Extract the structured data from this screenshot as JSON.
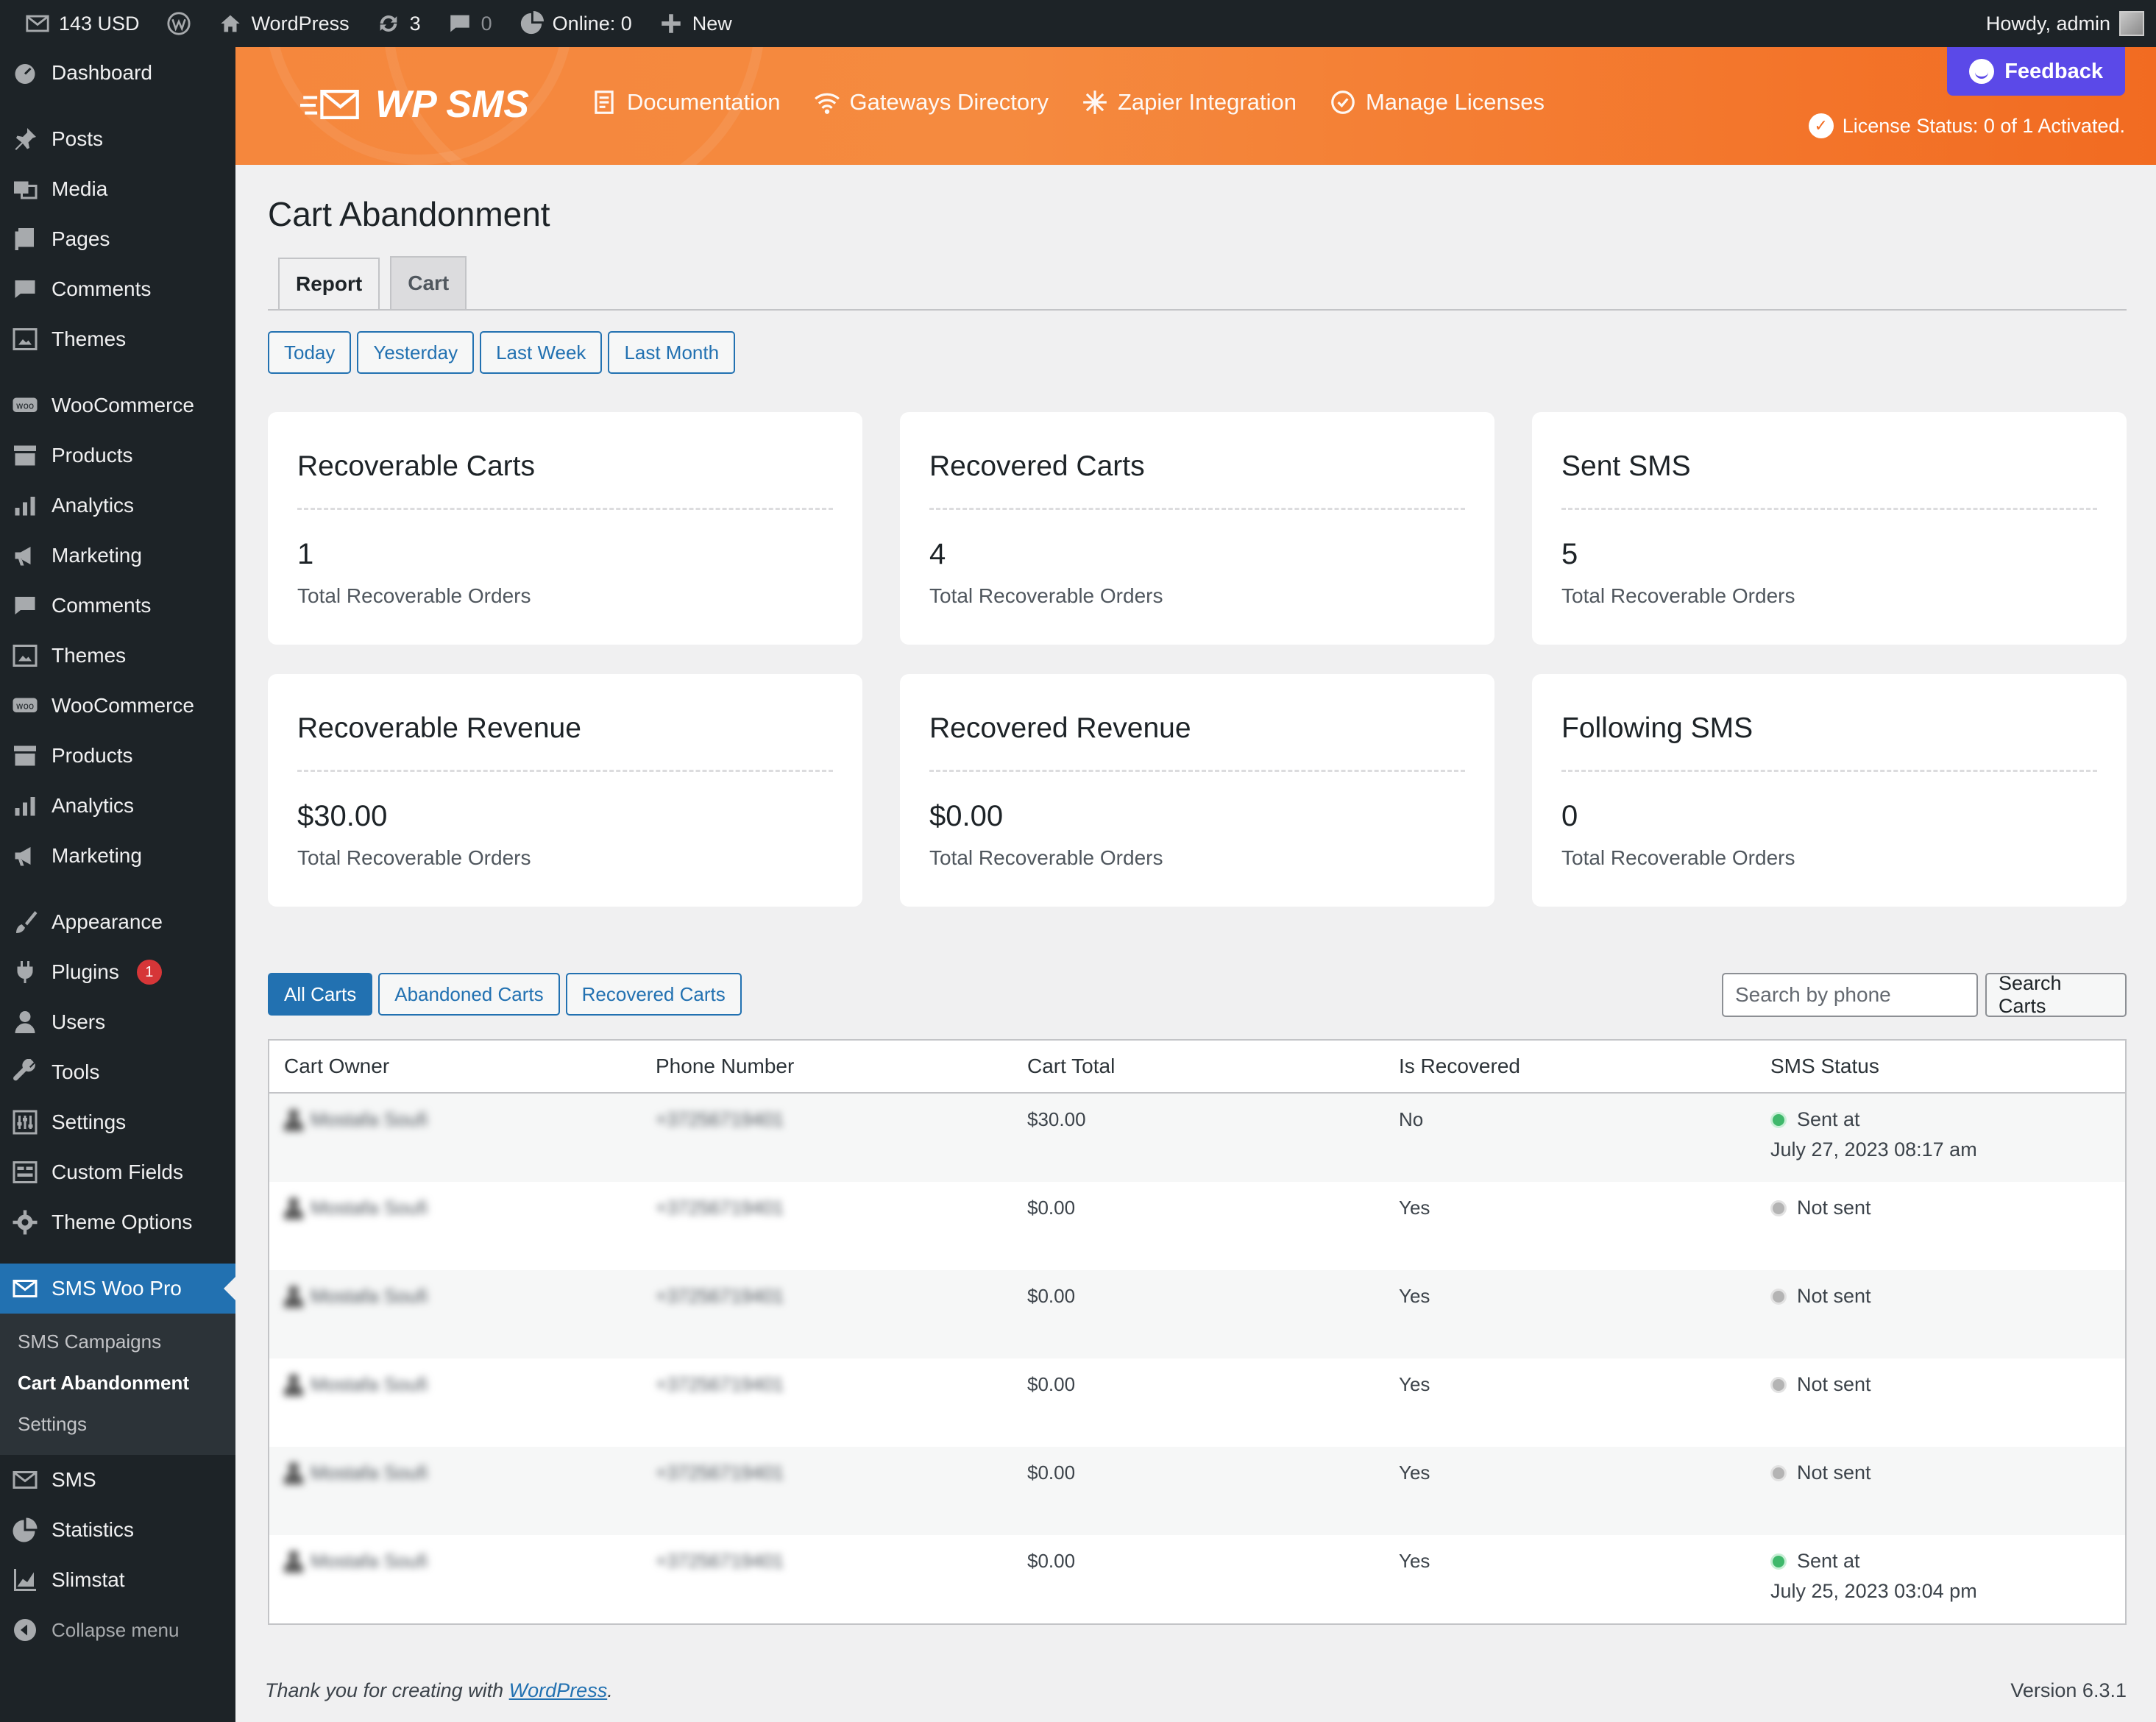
{
  "adminbar": {
    "sms_balance": "143 USD",
    "site_name": "WordPress",
    "updates_count": "3",
    "comments_count": "0",
    "online": "Online: 0",
    "new_label": "New",
    "howdy": "Howdy, admin"
  },
  "sidebar": {
    "items": [
      {
        "label": "Dashboard",
        "icon": "dashboard-icon"
      },
      {
        "label": "Posts",
        "icon": "pin-icon"
      },
      {
        "label": "Media",
        "icon": "media-icon"
      },
      {
        "label": "Pages",
        "icon": "pages-icon"
      },
      {
        "label": "Comments",
        "icon": "comment-icon"
      },
      {
        "label": "Themes",
        "icon": "themes-icon"
      },
      {
        "label": "WooCommerce",
        "icon": "woo-icon"
      },
      {
        "label": "Products",
        "icon": "archive-icon"
      },
      {
        "label": "Analytics",
        "icon": "chart-bar-icon"
      },
      {
        "label": "Marketing",
        "icon": "megaphone-icon"
      },
      {
        "label": "Comments",
        "icon": "comment-icon"
      },
      {
        "label": "Themes",
        "icon": "themes-icon"
      },
      {
        "label": "WooCommerce",
        "icon": "woo-icon"
      },
      {
        "label": "Products",
        "icon": "archive-icon"
      },
      {
        "label": "Analytics",
        "icon": "chart-bar-icon"
      },
      {
        "label": "Marketing",
        "icon": "megaphone-icon"
      },
      {
        "label": "Appearance",
        "icon": "brush-icon"
      },
      {
        "label": "Plugins",
        "icon": "plugin-icon",
        "badge": "1"
      },
      {
        "label": "Users",
        "icon": "user-icon"
      },
      {
        "label": "Tools",
        "icon": "wrench-icon"
      },
      {
        "label": "Settings",
        "icon": "settings-icon"
      },
      {
        "label": "Custom Fields",
        "icon": "fields-icon"
      },
      {
        "label": "Theme Options",
        "icon": "gear-icon"
      },
      {
        "label": "SMS Woo Pro",
        "icon": "envelope-icon"
      }
    ],
    "submenu": [
      "SMS Campaigns",
      "Cart Abandonment",
      "Settings"
    ],
    "bottom_items": [
      {
        "label": "SMS",
        "icon": "envelope-icon"
      },
      {
        "label": "Statistics",
        "icon": "pie-icon"
      },
      {
        "label": "Slimstat",
        "icon": "graph-icon"
      }
    ],
    "collapse_label": "Collapse menu"
  },
  "plugin_header": {
    "logo_text": "WP SMS",
    "nav": [
      {
        "label": "Documentation",
        "icon": "document-icon"
      },
      {
        "label": "Gateways Directory",
        "icon": "wifi-icon"
      },
      {
        "label": "Zapier Integration",
        "icon": "asterisk-icon"
      },
      {
        "label": "Manage Licenses",
        "icon": "check-circle-icon"
      }
    ],
    "feedback_label": "Feedback",
    "license_status": "License Status: 0 of 1 Activated."
  },
  "page": {
    "title": "Cart Abandonment",
    "tabs": [
      "Report",
      "Cart"
    ],
    "period_buttons": [
      "Today",
      "Yesterday",
      "Last Week",
      "Last Month"
    ]
  },
  "cards": [
    {
      "title": "Recoverable Carts",
      "value": "1",
      "subtitle": "Total Recoverable Orders"
    },
    {
      "title": "Recovered Carts",
      "value": "4",
      "subtitle": "Total Recoverable Orders"
    },
    {
      "title": "Sent SMS",
      "value": "5",
      "subtitle": "Total Recoverable Orders"
    },
    {
      "title": "Recoverable Revenue",
      "value": "$30.00",
      "subtitle": "Total Recoverable Orders"
    },
    {
      "title": "Recovered Revenue",
      "value": "$0.00",
      "subtitle": "Total Recoverable Orders"
    },
    {
      "title": "Following SMS",
      "value": "0",
      "subtitle": "Total Recoverable Orders"
    }
  ],
  "filters": {
    "buttons": [
      "All Carts",
      "Abandoned Carts",
      "Recovered Carts"
    ],
    "search_placeholder": "Search by phone",
    "search_button": "Search Carts"
  },
  "table": {
    "columns": [
      "Cart Owner",
      "Phone Number",
      "Cart Total",
      "Is Recovered",
      "SMS Status"
    ],
    "rows": [
      {
        "owner": "Mostafa Soufi",
        "phone": "+37256719401",
        "total": "$30.00",
        "recovered": "No",
        "status": "Sent at",
        "status_date": "July 27, 2023 08:17 am",
        "sent": true
      },
      {
        "owner": "Mostafa Soufi",
        "phone": "+37256719401",
        "total": "$0.00",
        "recovered": "Yes",
        "status": "Not sent",
        "status_date": "",
        "sent": false
      },
      {
        "owner": "Mostafa Soufi",
        "phone": "+37256719401",
        "total": "$0.00",
        "recovered": "Yes",
        "status": "Not sent",
        "status_date": "",
        "sent": false
      },
      {
        "owner": "Mostafa Soufi",
        "phone": "+37256719401",
        "total": "$0.00",
        "recovered": "Yes",
        "status": "Not sent",
        "status_date": "",
        "sent": false
      },
      {
        "owner": "Mostafa Soufi",
        "phone": "+37256719401",
        "total": "$0.00",
        "recovered": "Yes",
        "status": "Not sent",
        "status_date": "",
        "sent": false
      },
      {
        "owner": "Mostafa Soufi",
        "phone": "+37256719401",
        "total": "$0.00",
        "recovered": "Yes",
        "status": "Sent at",
        "status_date": "July 25, 2023 03:04 pm",
        "sent": true
      }
    ]
  },
  "footer": {
    "thanks_prefix": "Thank you for creating with ",
    "thanks_link": "WordPress",
    "thanks_suffix": ".",
    "version": "Version 6.3.1"
  },
  "colors": {
    "accent": "#2271b1",
    "header_orange": "#f58a3f",
    "feedback_purple": "#5b49e8",
    "sent_green": "#3fb86b"
  }
}
